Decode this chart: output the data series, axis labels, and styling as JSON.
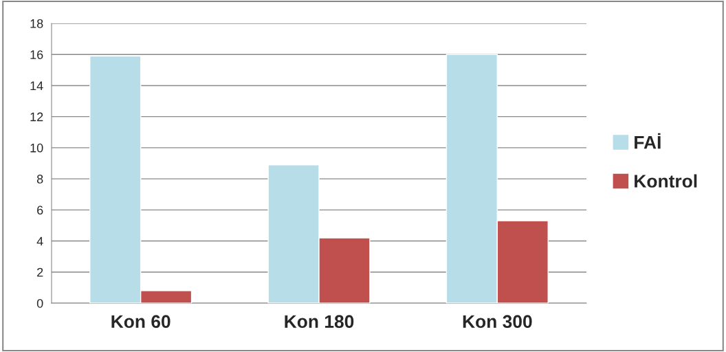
{
  "chart_data": {
    "type": "bar",
    "categories": [
      "Kon 60",
      "Kon 180",
      "Kon 300"
    ],
    "series": [
      {
        "name": "FAİ",
        "color": "#b7dde8",
        "values": [
          15.9,
          8.9,
          16.0
        ]
      },
      {
        "name": "Kontrol",
        "color": "#c0504d",
        "values": [
          0.8,
          4.2,
          5.3
        ]
      }
    ],
    "ylim": [
      0,
      18
    ],
    "yticks": [
      0,
      2,
      4,
      6,
      8,
      10,
      12,
      14,
      16,
      18
    ],
    "grid": "y",
    "legend": "right"
  }
}
